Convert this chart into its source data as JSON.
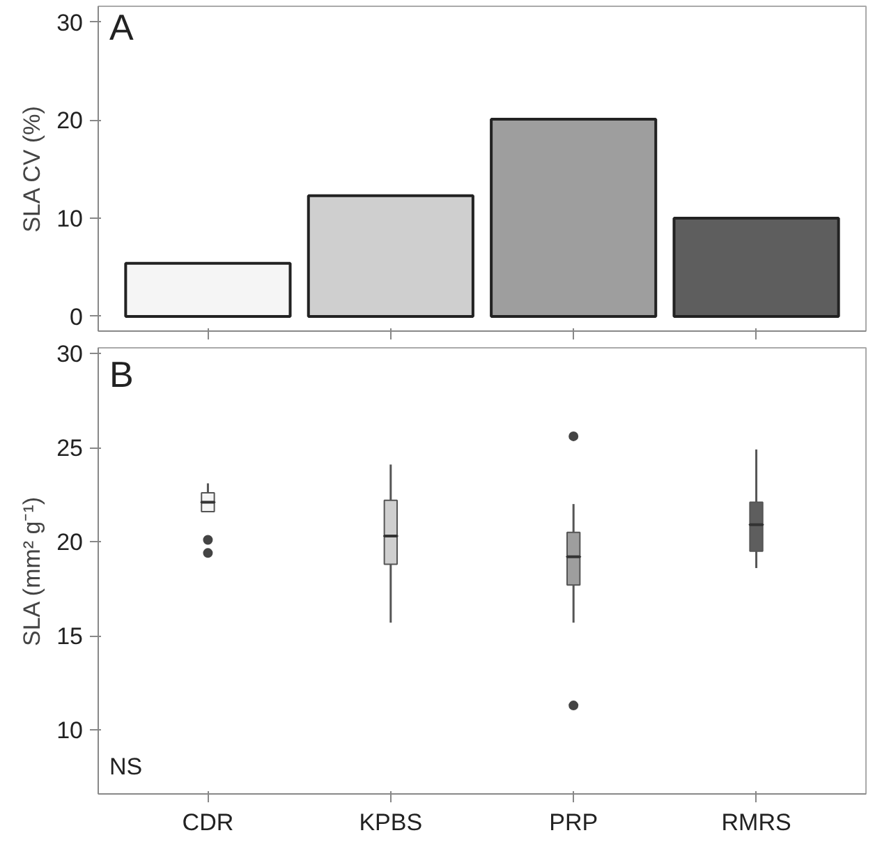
{
  "chart_data": [
    {
      "type": "bar",
      "title": "A",
      "ylabel": "SLA CV (%)",
      "categories": [
        null,
        null,
        null,
        null
      ],
      "values": [
        5.4,
        12.3,
        20.1,
        10.0
      ],
      "colors": [
        "#f5f5f5",
        "#cfcfcf",
        "#9e9e9e",
        "#5e5e5e"
      ],
      "ylim": [
        -1.5,
        31.6
      ],
      "yticks": [
        0,
        10,
        20,
        30
      ],
      "tick_labels": "y",
      "grid": false
    },
    {
      "type": "box",
      "title": "B",
      "ylabel": "SLA (mm² g⁻¹)",
      "categories": [
        "CDR",
        "KPBS",
        "PRP",
        "RMRS"
      ],
      "colors": [
        "#f5f5f5",
        "#cfcfcf",
        "#9e9e9e",
        "#5e5e5e"
      ],
      "boxes": [
        {
          "low": 21.6,
          "q1": 21.6,
          "median": 22.1,
          "q3": 22.6,
          "high": 23.1,
          "outliers": [
            20.1,
            19.4
          ]
        },
        {
          "low": 15.7,
          "q1": 18.8,
          "median": 20.3,
          "q3": 22.2,
          "high": 24.1
        },
        {
          "low": 15.7,
          "q1": 17.7,
          "median": 19.2,
          "q3": 20.5,
          "high": 22.0,
          "outliers": [
            25.6,
            11.3
          ]
        },
        {
          "low": 18.6,
          "q1": 19.5,
          "median": 20.9,
          "q3": 22.1,
          "high": 24.9
        }
      ],
      "ylim": [
        6.6,
        30.3
      ],
      "yticks": [
        10,
        15,
        20,
        25,
        30
      ],
      "grid": false,
      "annotations": [
        "NS"
      ]
    }
  ]
}
